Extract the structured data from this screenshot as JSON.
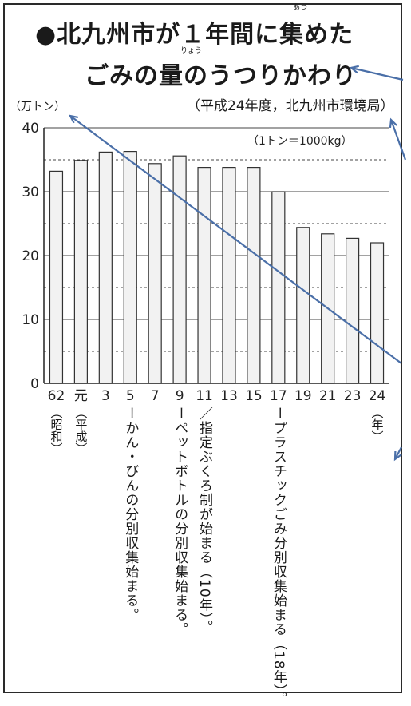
{
  "title_lines": [
    "●北九州市が１年間に集めた",
    "ごみの量のうつりかわり"
  ],
  "furigana": [
    "あつ",
    "りょう"
  ],
  "unit_label": "（万トン）",
  "source": "（平成24年度，北九州市環境局）",
  "conversion_note": "（1トン＝1000kg）",
  "era_labels": [
    "（昭和）",
    "（平成）"
  ],
  "year_end_label": "（年）",
  "notes": [
    "ーかん・びんの分別収集始まる。",
    "ーペットボトルの分別収集始まる。",
    "／指定ぶくろ制が始まる（10年）。",
    "ープラスチックごみ分別収集始まる（18年）。"
  ],
  "colors": {
    "bar_fill": "#f2f2f2",
    "bar_stroke": "#333333",
    "grid": "#444444",
    "arrow": "#4a6fa8"
  },
  "chart_data": {
    "type": "bar",
    "categories": [
      "62",
      "元",
      "3",
      "5",
      "7",
      "9",
      "11",
      "13",
      "15",
      "17",
      "19",
      "21",
      "23",
      "24"
    ],
    "values": [
      33.2,
      34.9,
      36.2,
      36.3,
      34.4,
      35.6,
      33.8,
      33.8,
      33.8,
      30.0,
      24.4,
      23.4,
      22.7,
      22.0
    ],
    "xlabel": "（年）",
    "ylabel": "（万トン）",
    "ylim": [
      0,
      40
    ],
    "yticks": [
      0,
      10,
      20,
      30,
      40
    ],
    "grid": "solid at 10, 20, 30; dashed at 5, 15, 25, 35",
    "legend": "none"
  }
}
